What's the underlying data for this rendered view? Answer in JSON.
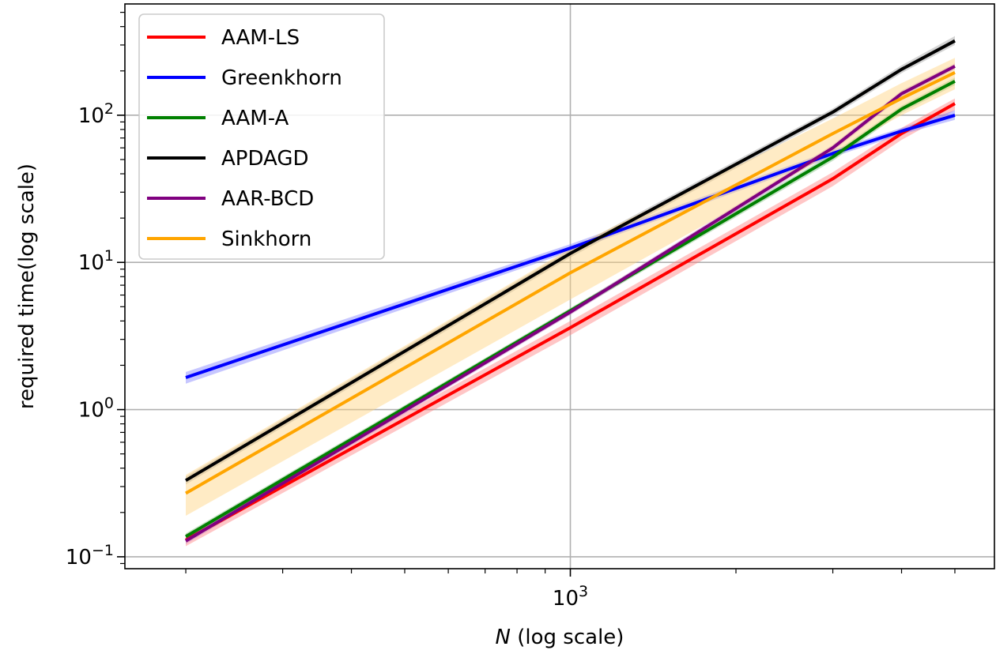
{
  "chart_data": {
    "type": "line",
    "xlabel_var": "N",
    "xlabel_rest": " (log scale)",
    "ylabel": "required time(log scale)",
    "x_scale": "log",
    "y_scale": "log",
    "xlim": [
      155,
      5900
    ],
    "ylim": [
      0.083,
      570
    ],
    "grid": true,
    "legend_placement": "top-left",
    "x_major_ticks": [
      {
        "value": 1000,
        "base": "10",
        "exp": "3"
      }
    ],
    "y_major_ticks": [
      {
        "value": 0.1,
        "base": "10",
        "exp": "−1"
      },
      {
        "value": 1,
        "base": "10",
        "exp": "0"
      },
      {
        "value": 10,
        "base": "10",
        "exp": "1"
      },
      {
        "value": 100,
        "base": "10",
        "exp": "2"
      }
    ],
    "x": [
      200,
      1000,
      3000,
      4000,
      5000
    ],
    "series": [
      {
        "name": "AAM-LS",
        "color": "#ff0000",
        "band_color": "#ff8080",
        "values": [
          0.13,
          3.6,
          37,
          75,
          120
        ],
        "lower": [
          0.118,
          3.2,
          33,
          68,
          108
        ],
        "upper": [
          0.142,
          4.0,
          41,
          82,
          130
        ]
      },
      {
        "name": "Greenkhorn",
        "color": "#0000ff",
        "band_color": "#8080ff",
        "values": [
          1.65,
          12.5,
          55,
          78,
          100
        ],
        "lower": [
          1.5,
          11.8,
          52,
          74,
          93
        ],
        "upper": [
          1.8,
          13.3,
          58,
          82,
          108
        ]
      },
      {
        "name": "AAM-A",
        "color": "#008000",
        "band_color": "#80c080",
        "values": [
          0.137,
          4.7,
          52,
          110,
          170
        ],
        "lower": [
          0.13,
          4.5,
          49,
          104,
          160
        ],
        "upper": [
          0.144,
          4.9,
          55,
          116,
          180
        ]
      },
      {
        "name": "APDAGD",
        "color": "#000000",
        "band_color": "#a0a0a0",
        "values": [
          0.33,
          11.5,
          105,
          205,
          320
        ],
        "lower": [
          0.31,
          10.8,
          99,
          193,
          300
        ],
        "upper": [
          0.35,
          12.2,
          111,
          218,
          345
        ]
      },
      {
        "name": "AAR-BCD",
        "color": "#800080",
        "band_color": "#c080c0",
        "values": [
          0.128,
          4.6,
          60,
          140,
          215
        ],
        "lower": [
          0.122,
          4.4,
          57,
          133,
          205
        ],
        "upper": [
          0.134,
          4.8,
          63,
          147,
          225
        ]
      },
      {
        "name": "Sinkhorn",
        "color": "#ffa500",
        "band_color": "#ffd27f",
        "values": [
          0.27,
          8.5,
          75,
          130,
          195
        ],
        "lower": [
          0.19,
          5.6,
          55,
          100,
          150
        ],
        "upper": [
          0.36,
          12.5,
          95,
          165,
          245
        ]
      }
    ]
  }
}
